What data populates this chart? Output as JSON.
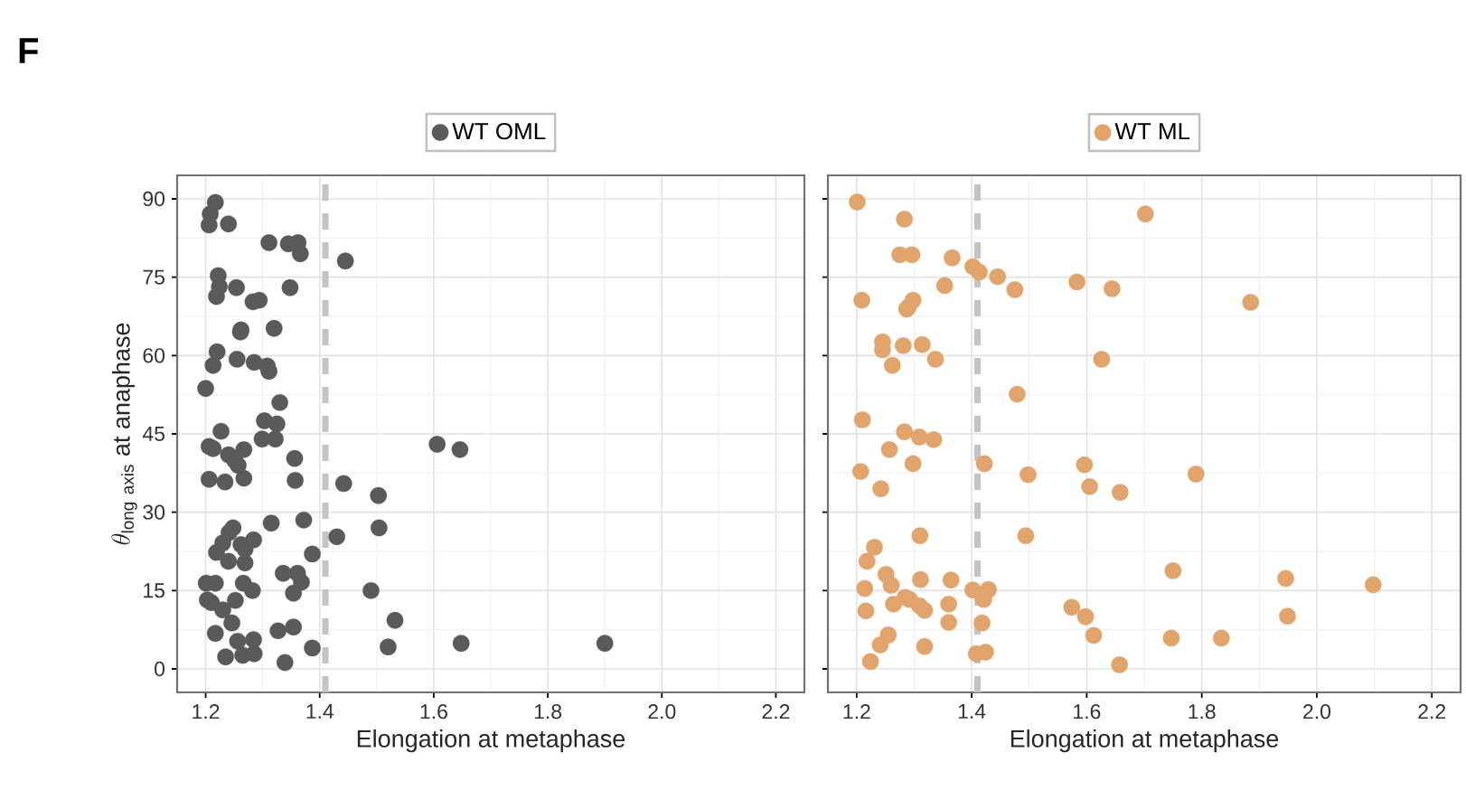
{
  "chart_data": [
    {
      "type": "scatter",
      "annotations": [
        "F"
      ],
      "xlabel": "Elongation at metaphase",
      "ylabel": "\\theta_{\\mathrm{long\\ axis}}\\ \\mathrm{at\\ anaphase}",
      "xlim": [
        1.15,
        2.25
      ],
      "ylim": [
        -4.5,
        94.5
      ],
      "xticks": [
        1.2,
        1.4,
        1.6,
        1.8,
        {
          "value": 2,
          "label": "2.0"
        },
        2.2
      ],
      "yticks": [
        0,
        15,
        30,
        45,
        60,
        75,
        90
      ],
      "grid": true,
      "legend": "top",
      "marker": "circle",
      "ref_lines": [
        {
          "axis": "x",
          "value": 1.41,
          "color": "#c4c4c4",
          "line_style": "dashed"
        }
      ],
      "series": [
        {
          "name": "WT OML",
          "color": "#5a5a5a",
          "x": [
            1.217,
            1.208,
            1.206,
            1.24,
            1.311,
            1.345,
            1.362,
            1.366,
            1.445,
            1.222,
            1.224,
            1.219,
            1.254,
            1.348,
            1.283,
            1.294,
            1.262,
            1.261,
            1.32,
            1.22,
            1.213,
            1.255,
            1.285,
            1.308,
            1.311,
            1.2,
            1.33,
            1.303,
            1.325,
            1.227,
            1.299,
            1.322,
            1.206,
            1.213,
            1.24,
            1.267,
            1.251,
            1.257,
            1.356,
            1.606,
            1.646,
            1.206,
            1.234,
            1.267,
            1.357,
            1.442,
            1.503,
            1.315,
            1.372,
            1.504,
            1.43,
            1.241,
            1.248,
            1.23,
            1.219,
            1.262,
            1.269,
            1.284,
            1.24,
            1.269,
            1.387,
            1.336,
            1.361,
            1.368,
            1.354,
            1.201,
            1.217,
            1.266,
            1.282,
            1.49,
            1.203,
            1.21,
            1.252,
            1.23,
            1.246,
            1.217,
            1.256,
            1.284,
            1.327,
            1.354,
            1.532,
            1.52,
            1.648,
            1.387,
            1.235,
            1.265,
            1.285,
            1.339,
            1.9
          ],
          "values": [
            89.3,
            87.1,
            85,
            85.2,
            81.6,
            81.4,
            81.6,
            79.5,
            78.1,
            75.3,
            73.2,
            71.3,
            73,
            73,
            70.3,
            70.6,
            64.9,
            64.5,
            65.2,
            60.7,
            58.1,
            59.3,
            58.7,
            58,
            57,
            53.7,
            51,
            47.5,
            46.9,
            45.5,
            44,
            44,
            42.6,
            42.2,
            41,
            42,
            39.9,
            39,
            40.3,
            43,
            42,
            36.3,
            35.8,
            36.5,
            36.1,
            35.5,
            33.2,
            27.9,
            28.5,
            27,
            25.3,
            26.1,
            27,
            24.1,
            22.3,
            23.8,
            22.9,
            24.7,
            20.6,
            20.3,
            22,
            18.3,
            18.3,
            16.6,
            14.5,
            16.4,
            16.4,
            16.4,
            15,
            15,
            13.2,
            12.7,
            13.1,
            11.3,
            8.8,
            6.8,
            5.3,
            5.6,
            7.3,
            8,
            9.3,
            4.2,
            4.9,
            4,
            2.3,
            2.6,
            2.9,
            1.2,
            4.9
          ]
        }
      ]
    },
    {
      "type": "scatter",
      "xlabel": "Elongation at metaphase",
      "xlim": [
        1.15,
        2.25
      ],
      "ylim": [
        -4.5,
        94.5
      ],
      "xticks": [
        1.2,
        1.4,
        1.6,
        1.8,
        {
          "value": 2,
          "label": "2.0"
        },
        2.2
      ],
      "yticks": [
        0,
        15,
        30,
        45,
        60,
        75,
        90
      ],
      "tick_labels": "x",
      "grid": true,
      "legend": "top",
      "marker": "circle",
      "ref_lines": [
        {
          "axis": "x",
          "value": 1.41,
          "color": "#c4c4c4",
          "line_style": "dashed"
        }
      ],
      "series": [
        {
          "name": "WT ML",
          "color": "#e0a46c",
          "x": [
            1.201,
            1.283,
            1.275,
            1.296,
            1.366,
            1.402,
            1.413,
            1.445,
            1.353,
            1.475,
            1.583,
            1.644,
            1.209,
            1.298,
            1.29,
            1.287,
            1.245,
            1.245,
            1.281,
            1.314,
            1.262,
            1.337,
            1.626,
            1.479,
            1.21,
            1.283,
            1.309,
            1.334,
            1.257,
            1.298,
            1.422,
            1.596,
            1.207,
            1.498,
            1.242,
            1.605,
            1.658,
            1.31,
            1.494,
            1.231,
            1.218,
            1.251,
            1.26,
            1.214,
            1.311,
            1.364,
            1.402,
            1.429,
            1.421,
            1.284,
            1.292,
            1.264,
            1.216,
            1.309,
            1.318,
            1.36,
            1.574,
            1.598,
            1.36,
            1.418,
            1.255,
            1.241,
            1.318,
            1.612,
            1.408,
            1.424,
            1.224,
            1.657,
            1.702,
            1.885,
            1.79,
            1.75,
            1.946,
            2.098,
            1.949,
            1.747,
            1.834
          ],
          "values": [
            89.4,
            86.1,
            79.3,
            79.3,
            78.7,
            77,
            76,
            75.1,
            73.4,
            72.6,
            74.1,
            72.8,
            70.6,
            70.6,
            69.3,
            68.9,
            62.6,
            61.1,
            61.9,
            62.1,
            58.1,
            59.3,
            59.3,
            52.6,
            47.7,
            45.4,
            44.4,
            43.9,
            42,
            39.3,
            39.3,
            39.1,
            37.8,
            37.2,
            34.5,
            34.9,
            33.8,
            25.5,
            25.5,
            23.3,
            20.6,
            18.1,
            16,
            15.4,
            17.1,
            17,
            15.1,
            15.2,
            13.3,
            13.7,
            13.3,
            12.4,
            11.1,
            12.1,
            11.2,
            12.4,
            11.8,
            10,
            8.9,
            8.8,
            6.5,
            4.6,
            4.3,
            6.4,
            2.9,
            3.2,
            1.4,
            0.8,
            87.1,
            70.2,
            37.3,
            18.8,
            17.3,
            16.1,
            10.1,
            5.9,
            5.9
          ]
        }
      ]
    }
  ]
}
